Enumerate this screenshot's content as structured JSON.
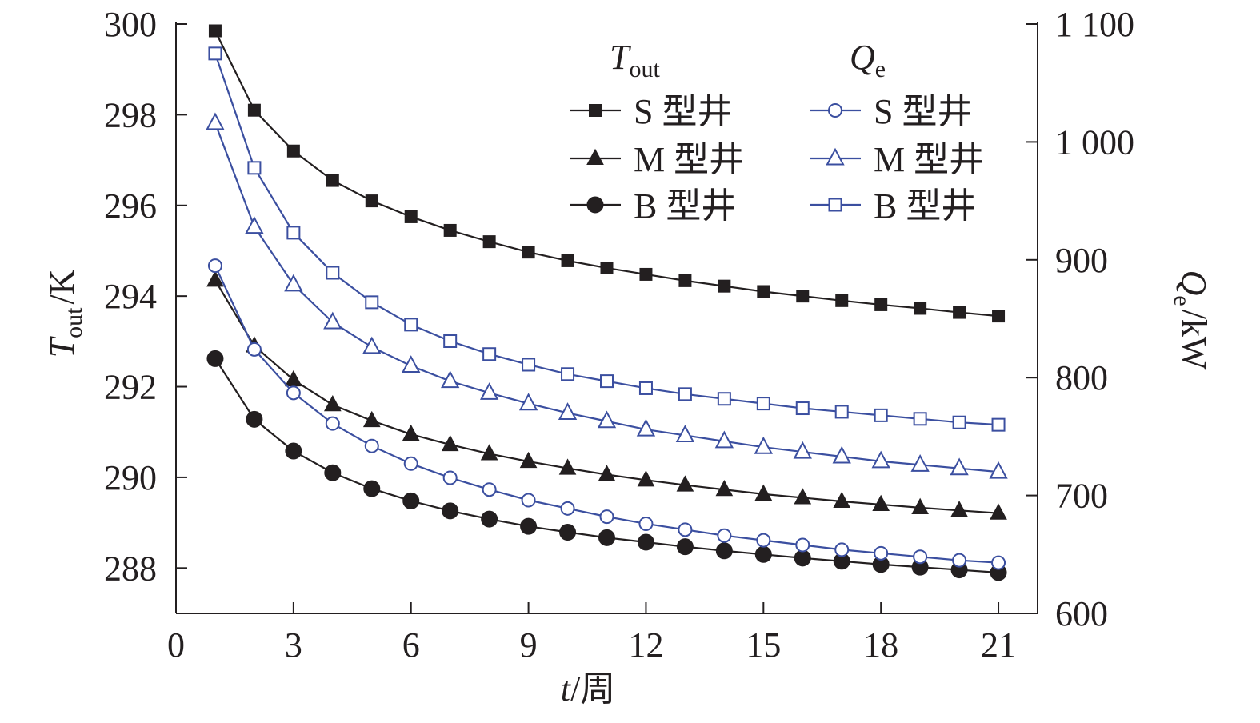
{
  "chart_data": {
    "type": "line",
    "x_axis": {
      "label_var": "t",
      "label_unit": "/周",
      "ticks": [
        "0",
        "3",
        "6",
        "9",
        "12",
        "15",
        "18",
        "21"
      ],
      "range": [
        0,
        22
      ]
    },
    "y_left": {
      "label_var": "T",
      "label_sub": "out",
      "label_unit": "/K",
      "ticks": [
        "288",
        "290",
        "292",
        "294",
        "296",
        "298",
        "300"
      ],
      "range": [
        287,
        300
      ]
    },
    "y_right": {
      "label_var": "Q",
      "label_sub": "e",
      "label_unit": "/kW",
      "ticks": [
        "600",
        "700",
        "800",
        "900",
        "1 000",
        "1 100"
      ],
      "range": [
        600,
        1100
      ]
    },
    "legend": {
      "group_left": {
        "var": "T",
        "sub": "out"
      },
      "group_right": {
        "var": "Q",
        "sub": "e"
      },
      "placement": "top-right"
    },
    "x": [
      1,
      2,
      3,
      4,
      5,
      6,
      7,
      8,
      9,
      10,
      11,
      12,
      13,
      14,
      15,
      16,
      17,
      18,
      19,
      20,
      21
    ],
    "series": [
      {
        "name": "S 型井",
        "group": "T_out",
        "axis": "left",
        "marker": "square",
        "filled": true,
        "color": "#231f20",
        "values": [
          299.85,
          298.1,
          297.2,
          296.55,
          296.1,
          295.75,
          295.45,
          295.2,
          294.97,
          294.78,
          294.62,
          294.48,
          294.34,
          294.22,
          294.1,
          294.0,
          293.9,
          293.81,
          293.73,
          293.64,
          293.56
        ]
      },
      {
        "name": "M 型井",
        "group": "T_out",
        "axis": "left",
        "marker": "triangle",
        "filled": true,
        "color": "#231f20",
        "values": [
          294.35,
          292.9,
          292.15,
          291.6,
          291.25,
          290.95,
          290.72,
          290.52,
          290.35,
          290.2,
          290.06,
          289.94,
          289.83,
          289.73,
          289.63,
          289.55,
          289.47,
          289.4,
          289.33,
          289.27,
          289.21
        ]
      },
      {
        "name": "B 型井",
        "group": "T_out",
        "axis": "left",
        "marker": "circle",
        "filled": true,
        "color": "#231f20",
        "values": [
          292.62,
          291.28,
          290.58,
          290.1,
          289.75,
          289.48,
          289.26,
          289.08,
          288.92,
          288.79,
          288.67,
          288.57,
          288.47,
          288.38,
          288.3,
          288.22,
          288.15,
          288.08,
          288.02,
          287.96,
          287.9
        ]
      },
      {
        "name": "S 型井",
        "group": "Q_e",
        "axis": "right",
        "marker": "circle",
        "filled": false,
        "color": "#3b4fa0",
        "values": [
          895,
          824,
          787,
          761,
          742,
          727,
          715,
          705,
          696,
          689,
          682,
          676,
          671,
          666,
          662,
          658,
          654,
          651,
          648,
          645,
          643
        ]
      },
      {
        "name": "M 型井",
        "group": "Q_e",
        "axis": "right",
        "marker": "triangle",
        "filled": false,
        "color": "#3b4fa0",
        "values": [
          1016,
          928,
          879,
          847,
          826,
          810,
          797,
          787,
          778,
          770,
          763,
          756,
          751,
          746,
          741,
          737,
          733,
          729,
          726,
          723,
          720
        ]
      },
      {
        "name": "B 型井",
        "group": "Q_e",
        "axis": "right",
        "marker": "square",
        "filled": false,
        "color": "#3b4fa0",
        "values": [
          1075,
          978,
          923,
          889,
          864,
          845,
          831,
          820,
          811,
          803,
          797,
          791,
          786,
          782,
          778,
          774,
          771,
          768,
          765,
          762,
          760
        ]
      }
    ]
  }
}
